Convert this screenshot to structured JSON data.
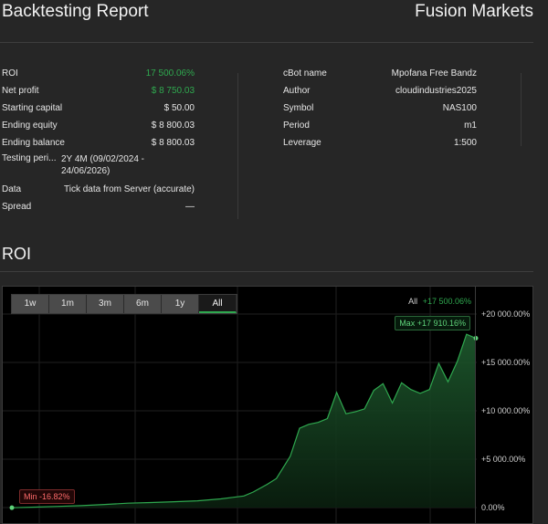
{
  "header": {
    "title": "Backtesting Report",
    "brand": "Fusion Markets"
  },
  "left_stats": [
    {
      "label": "ROI",
      "value": "17 500.06%",
      "green": true
    },
    {
      "label": "Net profit",
      "value": "$ 8 750.03",
      "green": true
    },
    {
      "label": "Starting capital",
      "value": "$ 50.00"
    },
    {
      "label": "Ending equity",
      "value": "$ 8 800.03"
    },
    {
      "label": "Ending balance",
      "value": "$ 8 800.03"
    },
    {
      "label": "Testing peri...",
      "value": "2Y 4M (09/02/2024 - 24/06/2026)"
    },
    {
      "label": "Data",
      "value": "Tick data from Server (accurate)"
    },
    {
      "label": "Spread",
      "value": "—"
    }
  ],
  "right_stats": [
    {
      "label": "cBot name",
      "value": "Mpofana Free Bandz"
    },
    {
      "label": "Author",
      "value": "cloudindustries2025"
    },
    {
      "label": "Symbol",
      "value": "NAS100"
    },
    {
      "label": "Period",
      "value": "m1"
    },
    {
      "label": "Leverage",
      "value": "1:500"
    }
  ],
  "roi_section": {
    "title": "ROI"
  },
  "chart_controls": {
    "tabs": [
      "1w",
      "1m",
      "3m",
      "6m",
      "1y",
      "All"
    ],
    "active_tab": "All",
    "legend_name": "All",
    "legend_value": "+17 500.06%",
    "max_label": "Max +17 910.16%",
    "min_label": "Min -16.82%"
  },
  "chart_data": {
    "type": "area",
    "y_ticks": [
      "+20 000.00%",
      "+15 000.00%",
      "+10 000.00%",
      "+5 000.00%",
      "0.00%"
    ],
    "ylim": [
      -1000,
      21000
    ],
    "x": [
      0,
      0.05,
      0.1,
      0.15,
      0.2,
      0.25,
      0.3,
      0.35,
      0.4,
      0.45,
      0.5,
      0.52,
      0.55,
      0.57,
      0.6,
      0.62,
      0.64,
      0.66,
      0.68,
      0.7,
      0.72,
      0.74,
      0.76,
      0.78,
      0.8,
      0.82,
      0.84,
      0.86,
      0.88,
      0.9,
      0.92,
      0.94,
      0.96,
      0.98,
      1.0
    ],
    "values": [
      -16.82,
      50,
      120,
      200,
      320,
      450,
      520,
      600,
      700,
      900,
      1200,
      1600,
      2400,
      3000,
      5300,
      8200,
      8600,
      8800,
      9200,
      11900,
      9700,
      9900,
      10200,
      12100,
      12800,
      10800,
      12900,
      12200,
      11800,
      12200,
      14900,
      13000,
      15100,
      17910.16,
      17500.06
    ],
    "color": "#2fa84f"
  }
}
